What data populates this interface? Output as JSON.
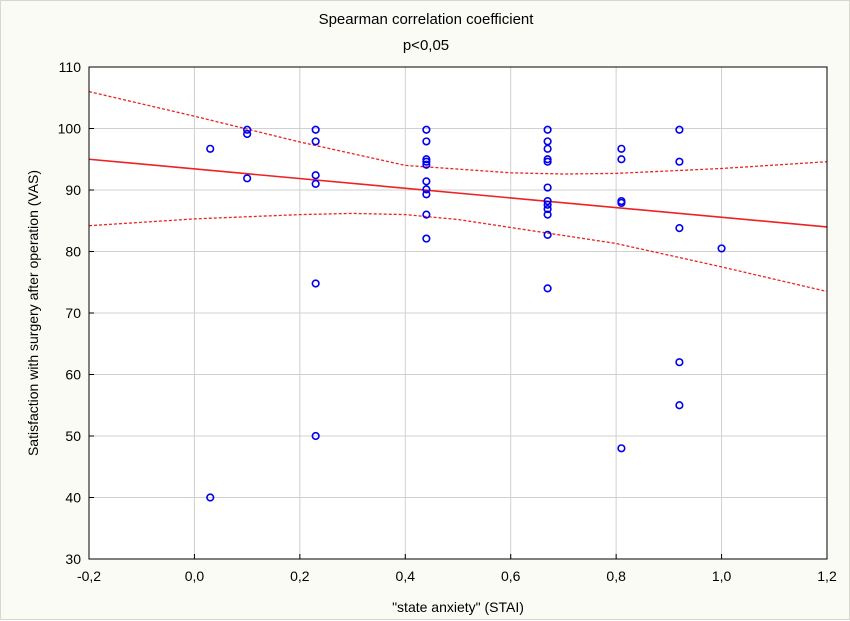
{
  "chart_data": {
    "type": "scatter",
    "title": "Spearman correlation coefficient",
    "subtitle": "p<0,05",
    "xlabel": "\"state anxiety\" (STAI)",
    "ylabel": "Satisfaction with surgery after operation (VAS)",
    "xlim": [
      -0.2,
      1.2
    ],
    "ylim": [
      30,
      110
    ],
    "x_ticks": [
      "-0,2",
      "0,0",
      "0,2",
      "0,4",
      "0,6",
      "0,8",
      "1,0",
      "1,2"
    ],
    "y_ticks": [
      "30",
      "40",
      "50",
      "60",
      "70",
      "80",
      "90",
      "100",
      "110"
    ],
    "grid": true,
    "points": [
      {
        "x": 0.03,
        "y": 96.7
      },
      {
        "x": 0.03,
        "y": 40
      },
      {
        "x": 0.1,
        "y": 99.8
      },
      {
        "x": 0.1,
        "y": 99.1
      },
      {
        "x": 0.1,
        "y": 91.9
      },
      {
        "x": 0.23,
        "y": 99.8
      },
      {
        "x": 0.23,
        "y": 97.9
      },
      {
        "x": 0.23,
        "y": 92.4
      },
      {
        "x": 0.23,
        "y": 91.0
      },
      {
        "x": 0.23,
        "y": 74.8
      },
      {
        "x": 0.23,
        "y": 50
      },
      {
        "x": 0.44,
        "y": 99.8
      },
      {
        "x": 0.44,
        "y": 97.9
      },
      {
        "x": 0.44,
        "y": 95.0
      },
      {
        "x": 0.44,
        "y": 94.6
      },
      {
        "x": 0.44,
        "y": 94.1
      },
      {
        "x": 0.44,
        "y": 91.4
      },
      {
        "x": 0.44,
        "y": 90.1
      },
      {
        "x": 0.44,
        "y": 89.3
      },
      {
        "x": 0.44,
        "y": 86.0
      },
      {
        "x": 0.44,
        "y": 82.1
      },
      {
        "x": 0.67,
        "y": 99.8
      },
      {
        "x": 0.67,
        "y": 97.9
      },
      {
        "x": 0.67,
        "y": 96.7
      },
      {
        "x": 0.67,
        "y": 95.0
      },
      {
        "x": 0.67,
        "y": 94.6
      },
      {
        "x": 0.67,
        "y": 90.4
      },
      {
        "x": 0.67,
        "y": 88.2
      },
      {
        "x": 0.67,
        "y": 87.6
      },
      {
        "x": 0.67,
        "y": 86.9
      },
      {
        "x": 0.67,
        "y": 86.0
      },
      {
        "x": 0.67,
        "y": 82.7
      },
      {
        "x": 0.67,
        "y": 74
      },
      {
        "x": 0.81,
        "y": 96.7
      },
      {
        "x": 0.81,
        "y": 95.0
      },
      {
        "x": 0.81,
        "y": 88.2
      },
      {
        "x": 0.81,
        "y": 87.9
      },
      {
        "x": 0.81,
        "y": 48
      },
      {
        "x": 0.92,
        "y": 99.8
      },
      {
        "x": 0.92,
        "y": 94.6
      },
      {
        "x": 0.92,
        "y": 83.8
      },
      {
        "x": 0.92,
        "y": 62
      },
      {
        "x": 0.92,
        "y": 55
      },
      {
        "x": 1.0,
        "y": 80.5
      }
    ],
    "regression_line": {
      "x": [
        -0.2,
        1.2
      ],
      "y": [
        95.0,
        84.0
      ]
    },
    "confidence_upper": {
      "x": [
        -0.2,
        0.0,
        0.2,
        0.4,
        0.6,
        0.7,
        0.8,
        1.0,
        1.2
      ],
      "y": [
        106,
        102,
        97.8,
        94,
        92.8,
        92.6,
        92.7,
        93.5,
        94.6
      ]
    },
    "confidence_lower": {
      "x": [
        -0.2,
        0.0,
        0.2,
        0.3,
        0.4,
        0.5,
        0.6,
        0.8,
        1.0,
        1.2
      ],
      "y": [
        84.2,
        85.3,
        86.0,
        86.2,
        86.0,
        85.2,
        83.9,
        81.3,
        77.5,
        73.5
      ]
    },
    "colors": {
      "points": "#0000ee",
      "regression": "#ee2222",
      "grid": "#d0d0d0",
      "background": "#fbfbf6"
    }
  }
}
